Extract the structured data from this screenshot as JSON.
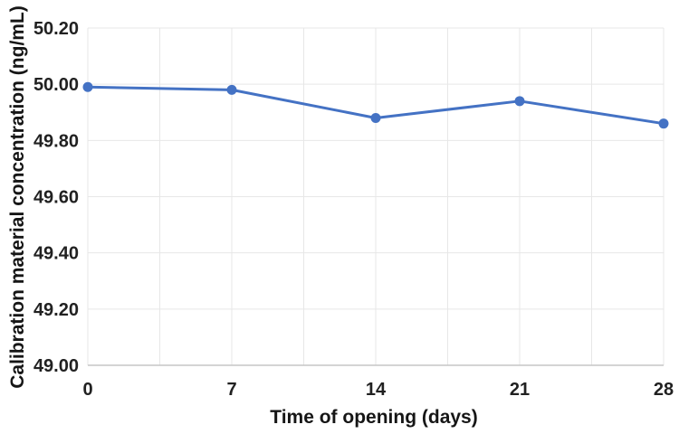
{
  "chart_data": {
    "type": "line",
    "title": "",
    "xlabel": "Time of opening (days)",
    "ylabel": "Calibration material concentration (ng/mL)",
    "x": [
      0,
      7,
      14,
      21,
      28
    ],
    "values": [
      49.99,
      49.98,
      49.88,
      49.94,
      49.86
    ],
    "xticks": [
      0,
      7,
      14,
      21,
      28
    ],
    "xlim": [
      0,
      28
    ],
    "ylim": [
      49.0,
      50.2
    ],
    "ytick_step": 0.2,
    "ytick_decimals": 2,
    "x_gridline_step": 3.5,
    "grid": true,
    "legend": false,
    "line_color": "#4472C4",
    "marker": "circle",
    "gridline_color": "#e7e7e7",
    "axis_line_color": "#c6c6c6",
    "text_color": "#212121",
    "background": "#ffffff"
  }
}
